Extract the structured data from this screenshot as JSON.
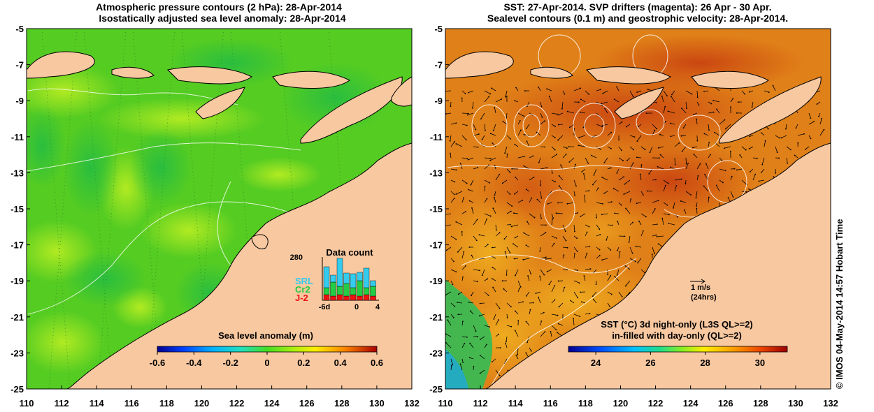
{
  "left_panel": {
    "title_line1": "Atmospheric pressure contours (2 hPa): 28-Apr-2014",
    "title_line2": "Isostatically adjusted sea level anomaly: 28-Apr-2014",
    "colorbar_title": "Sea level anomaly (m)",
    "colorbar_ticks": [
      "-0.6",
      "-0.4",
      "-0.2",
      "0",
      "0.2",
      "0.4",
      "0.6"
    ],
    "data_count": {
      "title": "Data count",
      "ymax_label": "280",
      "xticks": [
        "-6d",
        "0",
        "4"
      ],
      "legend": [
        {
          "label": "SRL",
          "color": "#33ccee"
        },
        {
          "label": "Cr2",
          "color": "#22cc44"
        },
        {
          "label": "J-2",
          "color": "#ee1111"
        }
      ]
    }
  },
  "right_panel": {
    "title_line1": "SST: 27-Apr-2014. SVP drifters (magenta): 26 Apr - 30 Apr.",
    "title_line2": "Sealevel contours (0.1 m) and geostrophic velocity: 28-Apr-2014.",
    "scale_label": "1 m/s",
    "scale_sub": "(24hrs)",
    "colorbar_title_line1": "SST (°C)  3d night-only (L3S QL>=2)",
    "colorbar_title_line2": "in-filled with day-only (QL>=2)",
    "colorbar_ticks": [
      "24",
      "26",
      "28",
      "30"
    ]
  },
  "axes": {
    "y_ticks": [
      "-5",
      "-7",
      "-9",
      "-11",
      "-13",
      "-15",
      "-17",
      "-19",
      "-21",
      "-23",
      "-25"
    ],
    "x_ticks": [
      "110",
      "112",
      "114",
      "116",
      "118",
      "120",
      "122",
      "124",
      "126",
      "128",
      "130",
      "132"
    ]
  },
  "credit": "© IMOS 04-May-2014 14:57 Hobart Time",
  "colors": {
    "land": "#f8c8a0",
    "ssh_ocean": "#55cc22",
    "sst_ocean": "#e08018"
  }
}
